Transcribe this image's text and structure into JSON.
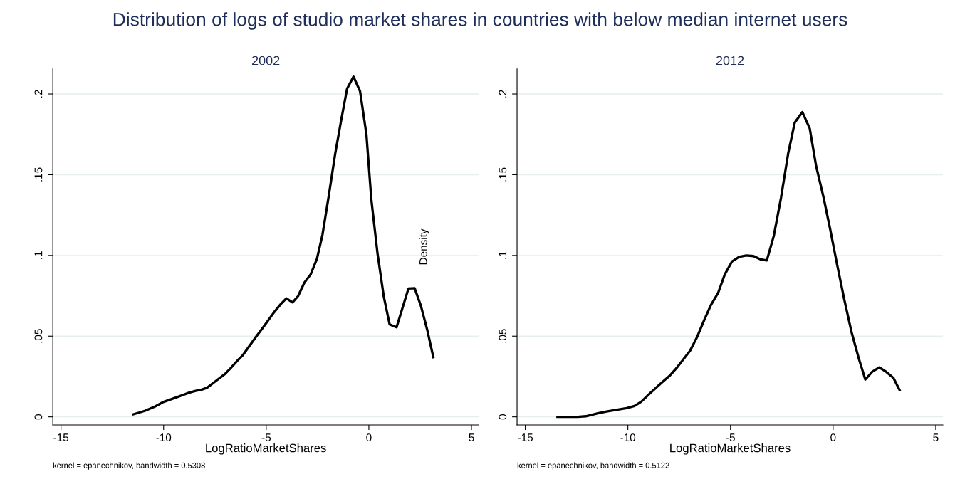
{
  "chart_data": [
    {
      "type": "line",
      "title": "Distribution of logs of studio market shares in countries with below median internet users",
      "subtitle": "2002",
      "xlabel": "LogRatioMarketShares",
      "annotations": [
        "kernel = epanechnikov, bandwidth = 0.5308"
      ],
      "x": [
        -11.47,
        -10.92,
        -10.41,
        -10.0,
        -9.46,
        -8.78,
        -8.44,
        -8.17,
        -7.89,
        -7.49,
        -7.01,
        -6.74,
        -6.4,
        -6.13,
        -5.52,
        -5.11,
        -4.63,
        -4.29,
        -4.02,
        -3.72,
        -3.45,
        -3.14,
        -2.83,
        -2.53,
        -2.26,
        -1.96,
        -1.64,
        -1.35,
        -1.06,
        -0.75,
        -0.43,
        -0.12,
        0.12,
        0.42,
        0.73,
        1.01,
        1.35,
        1.93,
        2.23,
        2.53,
        2.84,
        3.14
      ],
      "series": [
        {
          "color": "#000000",
          "values": [
            0.0016,
            0.0037,
            0.0065,
            0.0093,
            0.0117,
            0.0149,
            0.0161,
            0.0168,
            0.018,
            0.0219,
            0.0266,
            0.0301,
            0.0349,
            0.0384,
            0.0492,
            0.0562,
            0.0646,
            0.0699,
            0.0734,
            0.0709,
            0.0748,
            0.0832,
            0.0884,
            0.0979,
            0.1128,
            0.1364,
            0.163,
            0.1837,
            0.2033,
            0.2107,
            0.2018,
            0.175,
            0.1347,
            0.1014,
            0.0743,
            0.0573,
            0.0555,
            0.0795,
            0.0797,
            0.069,
            0.0541,
            0.037
          ]
        }
      ],
      "xlim": [
        -15.4,
        5.35
      ],
      "ylim": [
        -0.005,
        0.2155
      ],
      "xticks": [
        -15,
        -10,
        -5,
        0,
        5
      ],
      "yticks": [
        0,
        {
          "value": 0.05,
          "label": ".05"
        },
        {
          "value": 0.1,
          "label": ".1"
        },
        {
          "value": 0.15,
          "label": ".15"
        },
        {
          "value": 0.2,
          "label": ".2"
        }
      ],
      "grid": "y",
      "line_style": "solid"
    },
    {
      "type": "line",
      "subtitle": "2012",
      "xlabel": "LogRatioMarketShares",
      "ylabel": "Density",
      "annotations": [
        "kernel = epanechnikov, bandwidth = 0.5122"
      ],
      "x": [
        -13.43,
        -12.44,
        -12.05,
        -11.46,
        -11.04,
        -10.06,
        -9.68,
        -9.35,
        -8.93,
        -8.37,
        -7.98,
        -7.6,
        -6.97,
        -6.62,
        -6.29,
        -5.96,
        -5.6,
        -5.28,
        -4.93,
        -4.58,
        -4.23,
        -3.88,
        -3.53,
        -3.23,
        -2.89,
        -2.54,
        -2.19,
        -1.87,
        -1.5,
        -1.14,
        -0.83,
        -0.46,
        -0.15,
        0.2,
        0.55,
        0.9,
        1.25,
        1.57,
        1.91,
        2.25,
        2.58,
        2.94,
        3.24
      ],
      "series": [
        {
          "color": "#000000",
          "values": [
            0,
            0,
            0.0004,
            0.0022,
            0.0033,
            0.0054,
            0.0067,
            0.0094,
            0.0145,
            0.021,
            0.0253,
            0.0307,
            0.041,
            0.0497,
            0.0597,
            0.0691,
            0.0769,
            0.0882,
            0.0962,
            0.0991,
            0.1,
            0.0996,
            0.0975,
            0.0969,
            0.1121,
            0.1356,
            0.1631,
            0.1823,
            0.1888,
            0.1787,
            0.1555,
            0.1356,
            0.1166,
            0.094,
            0.0723,
            0.0524,
            0.0362,
            0.0231,
            0.028,
            0.0306,
            0.028,
            0.0241,
            0.0166
          ]
        }
      ],
      "xlim": [
        -15.4,
        5.35
      ],
      "ylim": [
        -0.005,
        0.2155
      ],
      "xticks": [
        -15,
        -10,
        -5,
        0,
        5
      ],
      "yticks": [
        0,
        {
          "value": 0.05,
          "label": ".05"
        },
        {
          "value": 0.1,
          "label": ".1"
        },
        {
          "value": 0.15,
          "label": ".15"
        },
        {
          "value": 0.2,
          "label": ".2"
        }
      ],
      "grid": "y",
      "line_style": "solid"
    }
  ]
}
